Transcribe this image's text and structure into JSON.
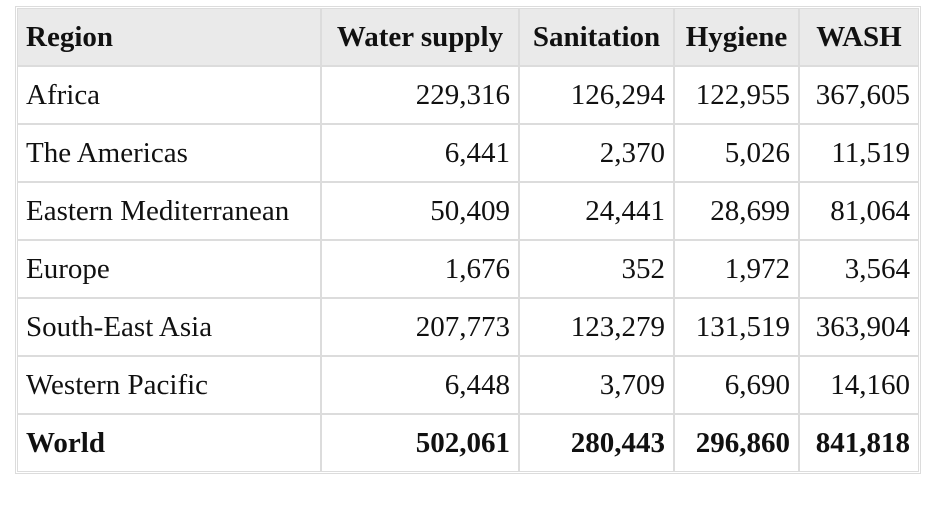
{
  "table": {
    "headers": [
      "Region",
      "Water supply",
      "Sanitation",
      "Hygiene",
      "WASH"
    ],
    "rows": [
      {
        "region": "Africa",
        "water": "229,316",
        "sanitation": "126,294",
        "hygiene": "122,955",
        "wash": "367,605"
      },
      {
        "region": "The Americas",
        "water": "6,441",
        "sanitation": "2,370",
        "hygiene": "5,026",
        "wash": "11,519"
      },
      {
        "region": "Eastern Mediterranean",
        "water": "50,409",
        "sanitation": "24,441",
        "hygiene": "28,699",
        "wash": "81,064"
      },
      {
        "region": "Europe",
        "water": "1,676",
        "sanitation": "352",
        "hygiene": "1,972",
        "wash": "3,564"
      },
      {
        "region": "South-East Asia",
        "water": "207,773",
        "sanitation": "123,279",
        "hygiene": "131,519",
        "wash": "363,904"
      },
      {
        "region": "Western Pacific",
        "water": "6,448",
        "sanitation": "3,709",
        "hygiene": "6,690",
        "wash": "14,160"
      }
    ],
    "total": {
      "region": "World",
      "water": "502,061",
      "sanitation": "280,443",
      "hygiene": "296,860",
      "wash": "841,818"
    }
  },
  "colors": {
    "header_background": "#eaeaea",
    "grid_line": "#dcdcdc",
    "text": "#111111"
  }
}
